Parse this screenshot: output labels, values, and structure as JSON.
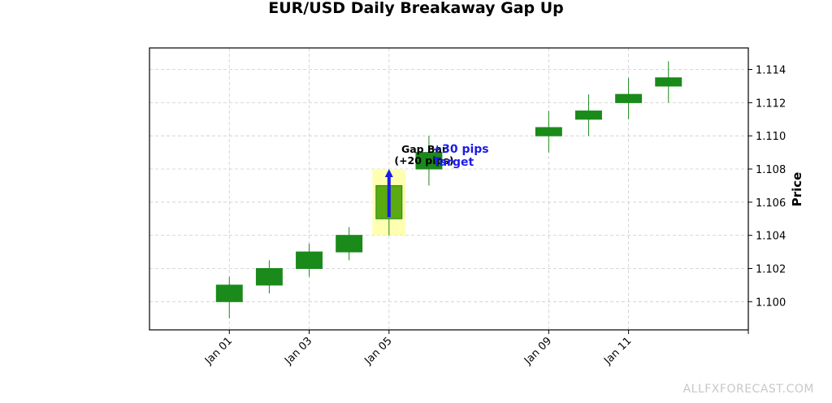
{
  "chart_data": {
    "type": "candlestick",
    "title": "EUR/USD Daily Breakaway Gap Up",
    "xlabel": "",
    "ylabel": "Price",
    "ylim": [
      1.0983,
      1.1153
    ],
    "y_ticks": [
      "1.100",
      "1.102",
      "1.104",
      "1.106",
      "1.108",
      "1.110",
      "1.112",
      "1.114"
    ],
    "x_range": [
      "2024-12-30",
      "2025-01-14"
    ],
    "x_ticks": [
      {
        "date": "2025-01-01",
        "label": "Jan 01"
      },
      {
        "date": "2025-01-03",
        "label": "Jan 03"
      },
      {
        "date": "2025-01-05",
        "label": "Jan 05"
      },
      {
        "date": "2025-01-09",
        "label": "Jan 09"
      },
      {
        "date": "2025-01-11",
        "label": "Jan 11"
      },
      {
        "date": "2025-01-14",
        "label": ""
      }
    ],
    "grid": true,
    "candles": [
      {
        "date": "2025-01-01",
        "open": 1.1,
        "high": 1.1015,
        "low": 1.099,
        "close": 1.101
      },
      {
        "date": "2025-01-02",
        "open": 1.101,
        "high": 1.1025,
        "low": 1.1005,
        "close": 1.102
      },
      {
        "date": "2025-01-03",
        "open": 1.102,
        "high": 1.1035,
        "low": 1.1015,
        "close": 1.103
      },
      {
        "date": "2025-01-04",
        "open": 1.103,
        "high": 1.1045,
        "low": 1.1025,
        "close": 1.104
      },
      {
        "date": "2025-01-05",
        "open": 1.105,
        "high": 1.107,
        "low": 1.104,
        "close": 1.107,
        "highlight": true
      },
      {
        "date": "2025-01-06",
        "open": 1.108,
        "high": 1.11,
        "low": 1.107,
        "close": 1.109
      },
      {
        "date": "2025-01-09",
        "open": 1.11,
        "high": 1.1115,
        "low": 1.109,
        "close": 1.1105
      },
      {
        "date": "2025-01-10",
        "open": 1.111,
        "high": 1.1125,
        "low": 1.11,
        "close": 1.1115
      },
      {
        "date": "2025-01-11",
        "open": 1.112,
        "high": 1.1135,
        "low": 1.111,
        "close": 1.1125
      },
      {
        "date": "2025-01-12",
        "open": 1.113,
        "high": 1.1145,
        "low": 1.112,
        "close": 1.1135
      }
    ],
    "highlight_zone": {
      "date_from": "2025-01-04T14:00",
      "date_to": "2025-01-05T10:00",
      "low": 1.104,
      "high": 1.108
    },
    "arrow": {
      "date": "2025-01-05",
      "from": 1.1051,
      "to": 1.108
    },
    "annotations": [
      {
        "text_line1": "Gap Bar",
        "text_line2": "(+20 pips)"
      },
      {
        "text_line1": "+30 pips",
        "text_line2": "Target"
      }
    ],
    "colors": {
      "candle": "#1a8a1a",
      "highlight_candle": "#5aaa10",
      "highlight_zone": "#ffffaa",
      "arrow": "#1a1aee",
      "grid": "#cccccc"
    }
  },
  "watermark": "ALLFXFORECAST.COM"
}
